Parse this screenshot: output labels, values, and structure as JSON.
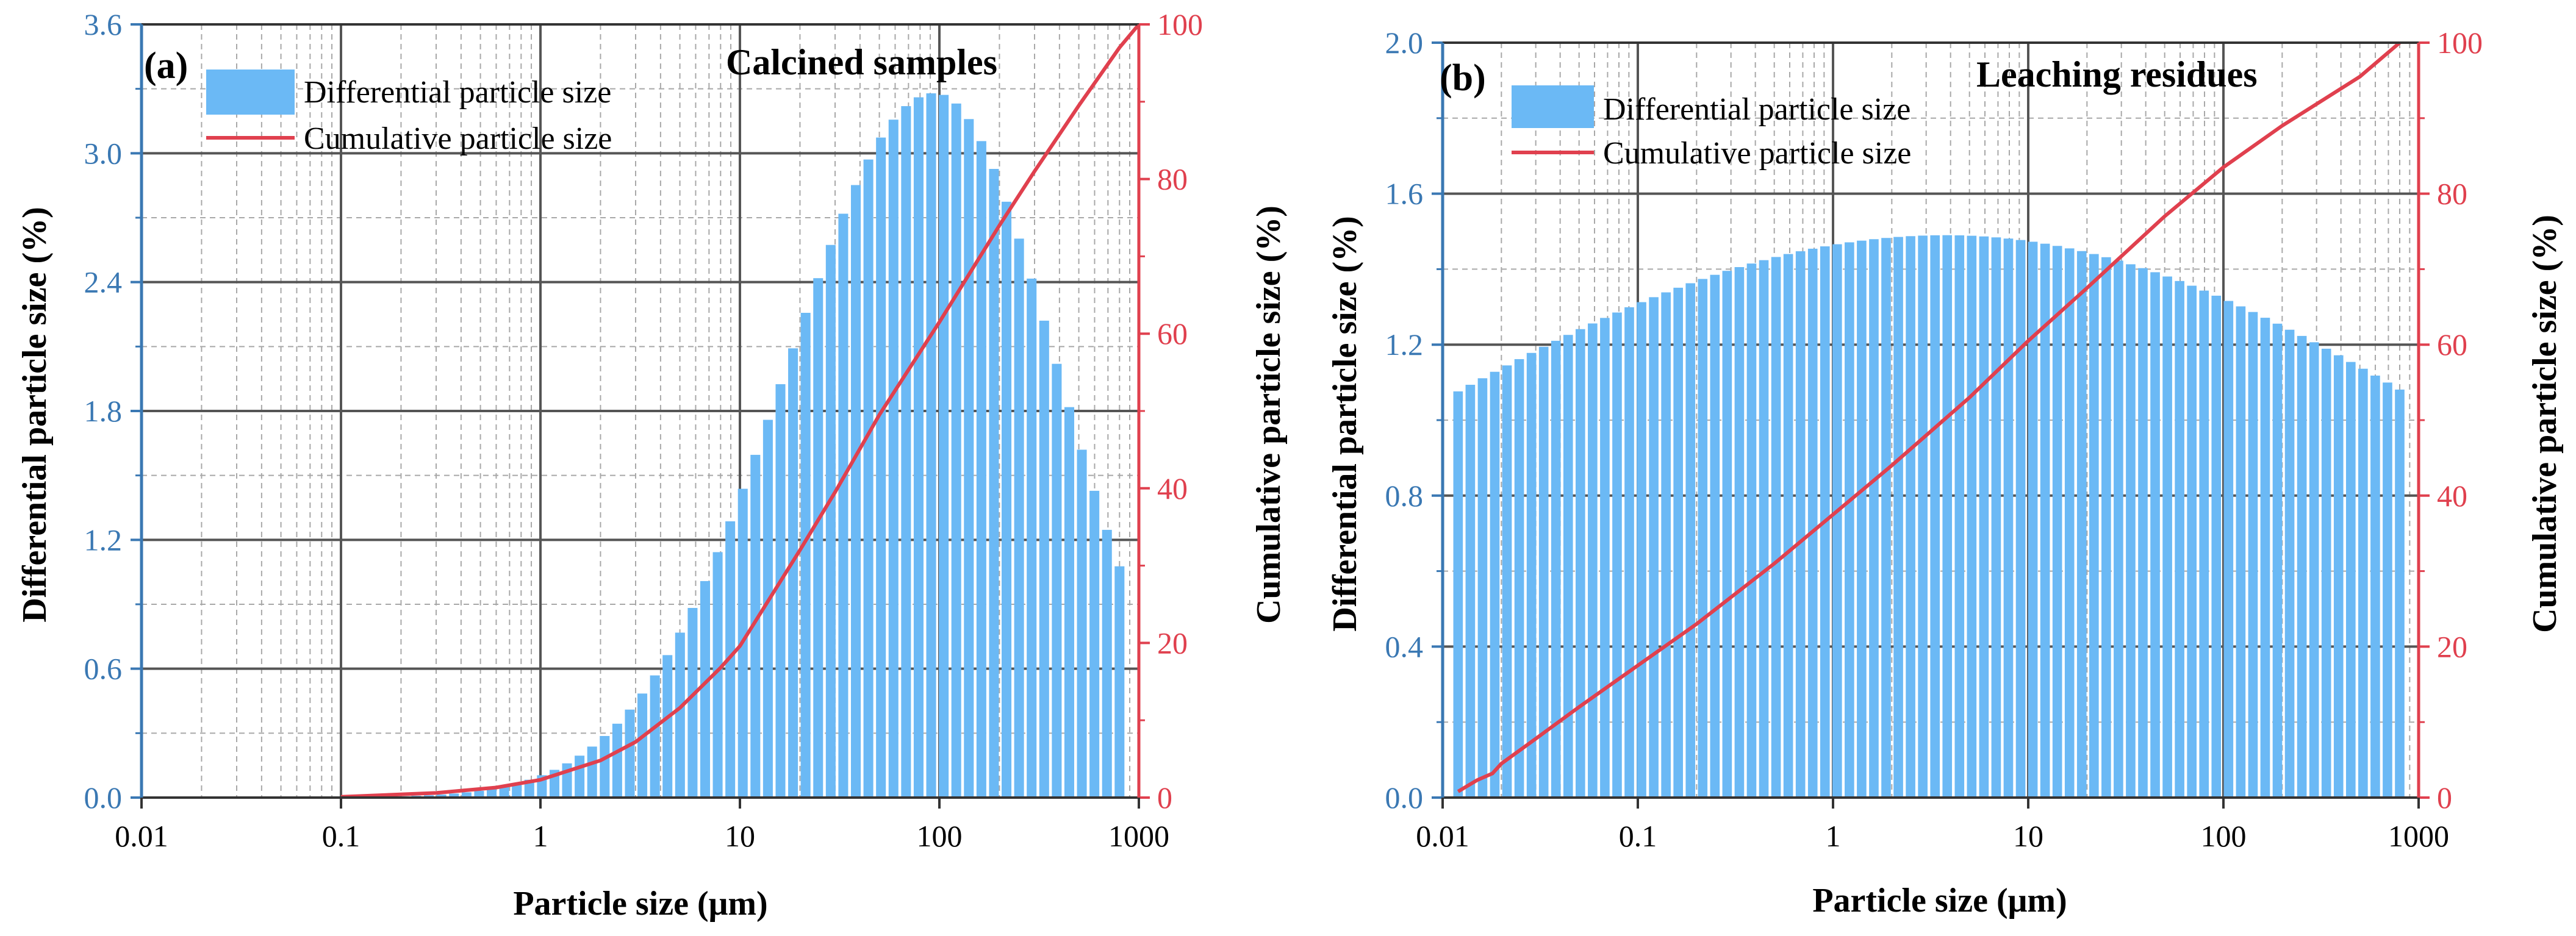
{
  "colors": {
    "bar": "#6bb9f5",
    "cumulative": "#e0404e",
    "left_axis": "#3a78b3",
    "right_axis": "#e0404e",
    "major_grid": "#555555",
    "minor_grid": "#a8a8a8"
  },
  "chart_data": [
    {
      "type": "bar",
      "panel_label": "(a)",
      "title": "Calcined samples",
      "xlabel": "Particle size (μm)",
      "ylabel": "Differential particle size (%)",
      "y2label": "Cumulative particle size (%)",
      "xscale": "log",
      "xlim": [
        0.01,
        1000
      ],
      "ylim": [
        0,
        3.6
      ],
      "y2lim": [
        0,
        100
      ],
      "xticks": [
        "0.01",
        "0.1",
        "1",
        "10",
        "100",
        "1000"
      ],
      "yticks": [
        "0.0",
        "0.6",
        "1.2",
        "1.8",
        "2.4",
        "3.0",
        "3.6"
      ],
      "y2ticks": [
        "0",
        "20",
        "40",
        "60",
        "80",
        "100"
      ],
      "grid": true,
      "legend_position": "top-left",
      "legend": [
        "Differential particle size",
        "Cumulative particle size"
      ],
      "bars": {
        "name": "Differential particle size",
        "x_min": 0.1,
        "x_max": 800,
        "bars_per_decade": 16,
        "peak_x": 95,
        "peak_y": 3.28,
        "sigma_left_decades": 0.75,
        "sigma_right_decades": 0.62,
        "right_end_y": 1.8
      },
      "series": [
        {
          "name": "Cumulative particle size",
          "x": [
            0.1,
            0.3,
            0.6,
            1,
            2,
            3,
            5,
            8,
            10,
            20,
            30,
            50,
            100,
            200,
            300,
            500,
            800,
            1000
          ],
          "y": [
            0.1,
            0.6,
            1.3,
            2.3,
            4.8,
            7.2,
            11.6,
            16.8,
            19.6,
            32.0,
            39.5,
            49.5,
            61.5,
            74.0,
            81.0,
            89.5,
            97.0,
            100
          ]
        }
      ]
    },
    {
      "type": "bar",
      "panel_label": "(b)",
      "title": "Leaching residues",
      "xlabel": "Particle size (μm)",
      "ylabel": "Differential particle size (%)",
      "y2label": "Cumulative particle size (%)",
      "xscale": "log",
      "xlim": [
        0.01,
        1000
      ],
      "ylim": [
        0,
        2.0
      ],
      "y2lim": [
        0,
        100
      ],
      "xticks": [
        "0.01",
        "0.1",
        "1",
        "10",
        "100",
        "1000"
      ],
      "yticks": [
        "0.0",
        "0.4",
        "0.8",
        "1.2",
        "1.6",
        "2.0"
      ],
      "y2ticks": [
        "0",
        "20",
        "40",
        "60",
        "80",
        "100"
      ],
      "grid": true,
      "legend_position": "top-left",
      "legend": [
        "Differential particle size",
        "Cumulative particle size"
      ],
      "bars": {
        "name": "Differential particle size",
        "x_min": 0.012,
        "x_max": 800,
        "bars_per_decade": 16,
        "peak_x": 3.8,
        "peak_y": 1.49,
        "sigma_left_decades": 3.1,
        "sigma_right_decades": 2.9,
        "right_end_y": 0.89
      },
      "series": [
        {
          "name": "Cumulative particle size",
          "x": [
            0.012,
            0.015,
            0.018,
            0.02,
            0.03,
            0.05,
            0.1,
            0.2,
            0.5,
            1,
            2,
            5,
            10,
            20,
            50,
            100,
            200,
            500,
            800
          ],
          "y": [
            0.8,
            2.3,
            3.2,
            4.5,
            7.8,
            12.0,
            17.5,
            23.0,
            31.0,
            37.5,
            44.0,
            53.0,
            60.5,
            67.5,
            77.0,
            83.5,
            89.0,
            95.5,
            100
          ]
        }
      ]
    }
  ]
}
